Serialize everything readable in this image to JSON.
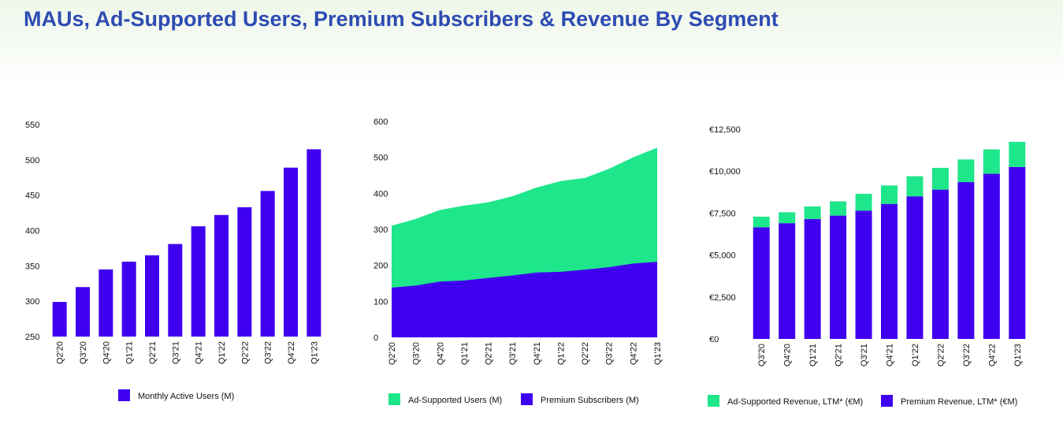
{
  "title": "MAUs, Ad-Supported Users, Premium Subscribers & Revenue By Segment",
  "colors": {
    "purple": "#4000f0",
    "green": "#1ee68a",
    "title": "#2e4bb2"
  },
  "chart_data": [
    {
      "type": "bar",
      "categories": [
        "Q2'20",
        "Q3'20",
        "Q4'20",
        "Q1'21",
        "Q2'21",
        "Q3'21",
        "Q4'21",
        "Q1'22",
        "Q2'22",
        "Q3'22",
        "Q4'22",
        "Q1'23"
      ],
      "series": [
        {
          "name": "Monthly Active Users (M)",
          "values": [
            299,
            320,
            345,
            356,
            365,
            381,
            406,
            422,
            433,
            456,
            489,
            515
          ]
        }
      ],
      "yticks": [
        "550",
        "500",
        "450",
        "400",
        "350",
        "300",
        "250"
      ],
      "ylim": [
        250,
        550
      ],
      "legend": "bottom"
    },
    {
      "type": "area",
      "stacked": true,
      "categories": [
        "Q2'20",
        "Q3'20",
        "Q4'20",
        "Q1'21",
        "Q2'21",
        "Q3'21",
        "Q4'21",
        "Q1'22",
        "Q2'22",
        "Q3'22",
        "Q4'22",
        "Q1'23"
      ],
      "series": [
        {
          "name": "Ad-Supported Users (M)",
          "values": [
            172,
            185,
            199,
            208,
            210,
            220,
            236,
            252,
            255,
            273,
            295,
            317
          ]
        },
        {
          "name": "Premium Subscribers (M)",
          "values": [
            138,
            144,
            155,
            158,
            165,
            172,
            180,
            182,
            188,
            195,
            205,
            210
          ]
        }
      ],
      "yticks": [
        "600",
        "500",
        "400",
        "300",
        "200",
        "100",
        "0"
      ],
      "ylim": [
        0,
        600
      ],
      "legend": "bottom"
    },
    {
      "type": "bar",
      "stacked": true,
      "categories": [
        "Q3'20",
        "Q4'20",
        "Q1'21",
        "Q2'21",
        "Q3'21",
        "Q4'21",
        "Q1'22",
        "Q2'22",
        "Q3'22",
        "Q4'22",
        "Q1'23"
      ],
      "series": [
        {
          "name": "Ad-Supported Revenue, LTM* (€M)",
          "values": [
            640,
            650,
            750,
            850,
            1000,
            1100,
            1200,
            1300,
            1350,
            1450,
            1500
          ]
        },
        {
          "name": "Premium Revenue, LTM* (€M)",
          "values": [
            6650,
            6900,
            7150,
            7350,
            7650,
            8050,
            8500,
            8900,
            9350,
            9850,
            10250
          ]
        }
      ],
      "yticks": [
        "€12,500",
        "€10,000",
        "€7,500",
        "€5,000",
        "€2,500",
        "€0"
      ],
      "ylim": [
        0,
        12500
      ],
      "legend": "bottom"
    }
  ]
}
